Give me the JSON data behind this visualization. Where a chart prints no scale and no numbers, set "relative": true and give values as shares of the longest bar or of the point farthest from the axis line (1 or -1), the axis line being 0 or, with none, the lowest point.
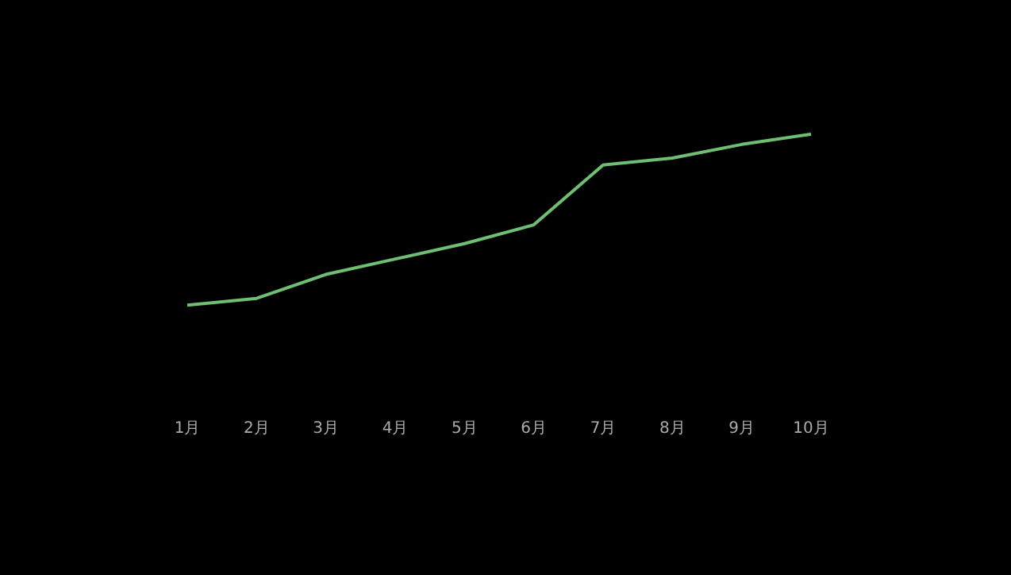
{
  "chart_data": {
    "type": "line",
    "relative": true,
    "categories": [
      "1月",
      "2月",
      "3月",
      "4月",
      "5月",
      "6月",
      "7月",
      "8月",
      "9月",
      "10月"
    ],
    "series": [
      {
        "color": "#6fbf73",
        "values": [
          0,
          0.04,
          0.18,
          0.27,
          0.36,
          0.47,
          0.82,
          0.86,
          0.94,
          1
        ]
      }
    ],
    "legend": false,
    "marker": "none",
    "line_style": "solid"
  }
}
